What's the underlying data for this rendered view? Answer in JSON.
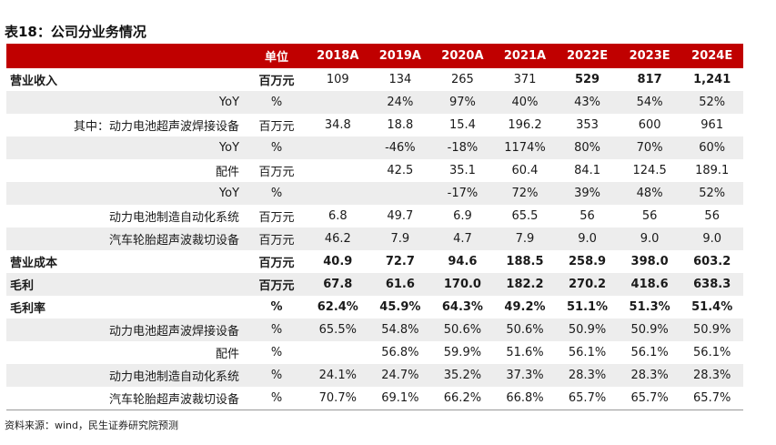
{
  "title": "表18：公司分业务情况",
  "source": "资料来源：wind，民生证券研究院预测",
  "headers": [
    "",
    "单位",
    "2018A",
    "2019A",
    "2020A",
    "2021A",
    "2022E",
    "2023E",
    "2024E"
  ],
  "rows": [
    {
      "label": "营业收入",
      "unit": "百万元",
      "main": true,
      "shade": false,
      "bold_row": false,
      "values": [
        "109",
        "134",
        "265",
        "371",
        "529",
        "817",
        "1,241"
      ]
    },
    {
      "label": "YoY",
      "unit": "%",
      "main": false,
      "shade": true,
      "bold_row": false,
      "values": [
        "",
        "24%",
        "97%",
        "40%",
        "43%",
        "54%",
        "52%"
      ]
    },
    {
      "label": "其中：动力电池超声波焊接设备",
      "unit": "百万元",
      "main": false,
      "shade": false,
      "bold_row": false,
      "values": [
        "34.8",
        "18.8",
        "15.4",
        "196.2",
        "353",
        "600",
        "961"
      ]
    },
    {
      "label": "YoY",
      "unit": "%",
      "main": false,
      "shade": true,
      "bold_row": false,
      "values": [
        "",
        "-46%",
        "-18%",
        "1174%",
        "80%",
        "70%",
        "60%"
      ]
    },
    {
      "label": "配件",
      "unit": "百万元",
      "main": false,
      "shade": false,
      "bold_row": false,
      "values": [
        "",
        "42.5",
        "35.1",
        "60.4",
        "84.1",
        "124.5",
        "189.1"
      ]
    },
    {
      "label": "YoY",
      "unit": "%",
      "main": false,
      "shade": true,
      "bold_row": false,
      "values": [
        "",
        "",
        "-17%",
        "72%",
        "39%",
        "48%",
        "52%"
      ]
    },
    {
      "label": "动力电池制造自动化系统",
      "unit": "百万元",
      "main": false,
      "shade": false,
      "bold_row": false,
      "values": [
        "6.8",
        "49.7",
        "6.9",
        "65.5",
        "56",
        "56",
        "56"
      ]
    },
    {
      "label": "汽车轮胎超声波裁切设备",
      "unit": "百万元",
      "main": false,
      "shade": true,
      "bold_row": false,
      "values": [
        "46.2",
        "7.9",
        "4.7",
        "7.9",
        "9.0",
        "9.0",
        "9.0"
      ]
    },
    {
      "label": "营业成本",
      "unit": "百万元",
      "main": true,
      "shade": false,
      "bold_row": true,
      "values": [
        "40.9",
        "72.7",
        "94.6",
        "188.5",
        "258.9",
        "398.0",
        "603.2"
      ]
    },
    {
      "label": "毛利",
      "unit": "百万元",
      "main": true,
      "shade": true,
      "bold_row": true,
      "values": [
        "67.8",
        "61.6",
        "170.0",
        "182.2",
        "270.2",
        "418.6",
        "638.3"
      ]
    },
    {
      "label": "毛利率",
      "unit": "%",
      "main": true,
      "shade": false,
      "bold_row": true,
      "values": [
        "62.4%",
        "45.9%",
        "64.3%",
        "49.2%",
        "51.1%",
        "51.3%",
        "51.4%"
      ]
    },
    {
      "label": "动力电池超声波焊接设备",
      "unit": "%",
      "main": false,
      "shade": true,
      "bold_row": false,
      "values": [
        "65.5%",
        "54.8%",
        "50.6%",
        "50.6%",
        "50.9%",
        "50.9%",
        "50.9%"
      ]
    },
    {
      "label": "配件",
      "unit": "%",
      "main": false,
      "shade": false,
      "bold_row": false,
      "values": [
        "",
        "56.8%",
        "59.9%",
        "51.6%",
        "56.1%",
        "56.1%",
        "56.1%"
      ]
    },
    {
      "label": "动力电池制造自动化系统",
      "unit": "%",
      "main": false,
      "shade": true,
      "bold_row": false,
      "values": [
        "24.1%",
        "24.7%",
        "35.2%",
        "37.3%",
        "28.3%",
        "28.3%",
        "28.3%"
      ]
    },
    {
      "label": "汽车轮胎超声波裁切设备",
      "unit": "%",
      "main": false,
      "shade": false,
      "bold_row": false,
      "values": [
        "70.7%",
        "69.1%",
        "66.2%",
        "66.8%",
        "65.7%",
        "65.7%",
        "65.7%"
      ]
    }
  ]
}
